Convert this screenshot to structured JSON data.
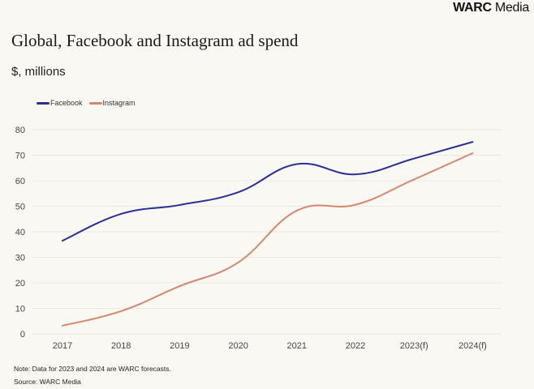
{
  "brand": {
    "bold": "WARC",
    "rest": " Media"
  },
  "chart_data": {
    "type": "line",
    "title": "Global, Facebook and Instagram ad spend",
    "subtitle": "$, millions",
    "xlabel": "",
    "ylabel": "$, millions",
    "categories": [
      "2017",
      "2018",
      "2019",
      "2020",
      "2021",
      "2022",
      "2023(f)",
      "2024(f)"
    ],
    "yticks": [
      0,
      10,
      20,
      30,
      40,
      50,
      60,
      70,
      80
    ],
    "ylim": [
      0,
      80
    ],
    "grid": true,
    "legend_position": "top-left",
    "series": [
      {
        "name": "Facebook",
        "color": "#2b2f94",
        "values": [
          36.5,
          47,
          50.5,
          55.5,
          66.5,
          62.5,
          68.7,
          75.2
        ]
      },
      {
        "name": "Instagram",
        "color": "#d4876a",
        "values": [
          3.2,
          8.9,
          18.7,
          28,
          48.3,
          50.6,
          60.5,
          70.8
        ]
      }
    ],
    "note": "Note: Data for 2023 and 2024 are WARC forecasts.",
    "source": "Source: WARC Media"
  }
}
